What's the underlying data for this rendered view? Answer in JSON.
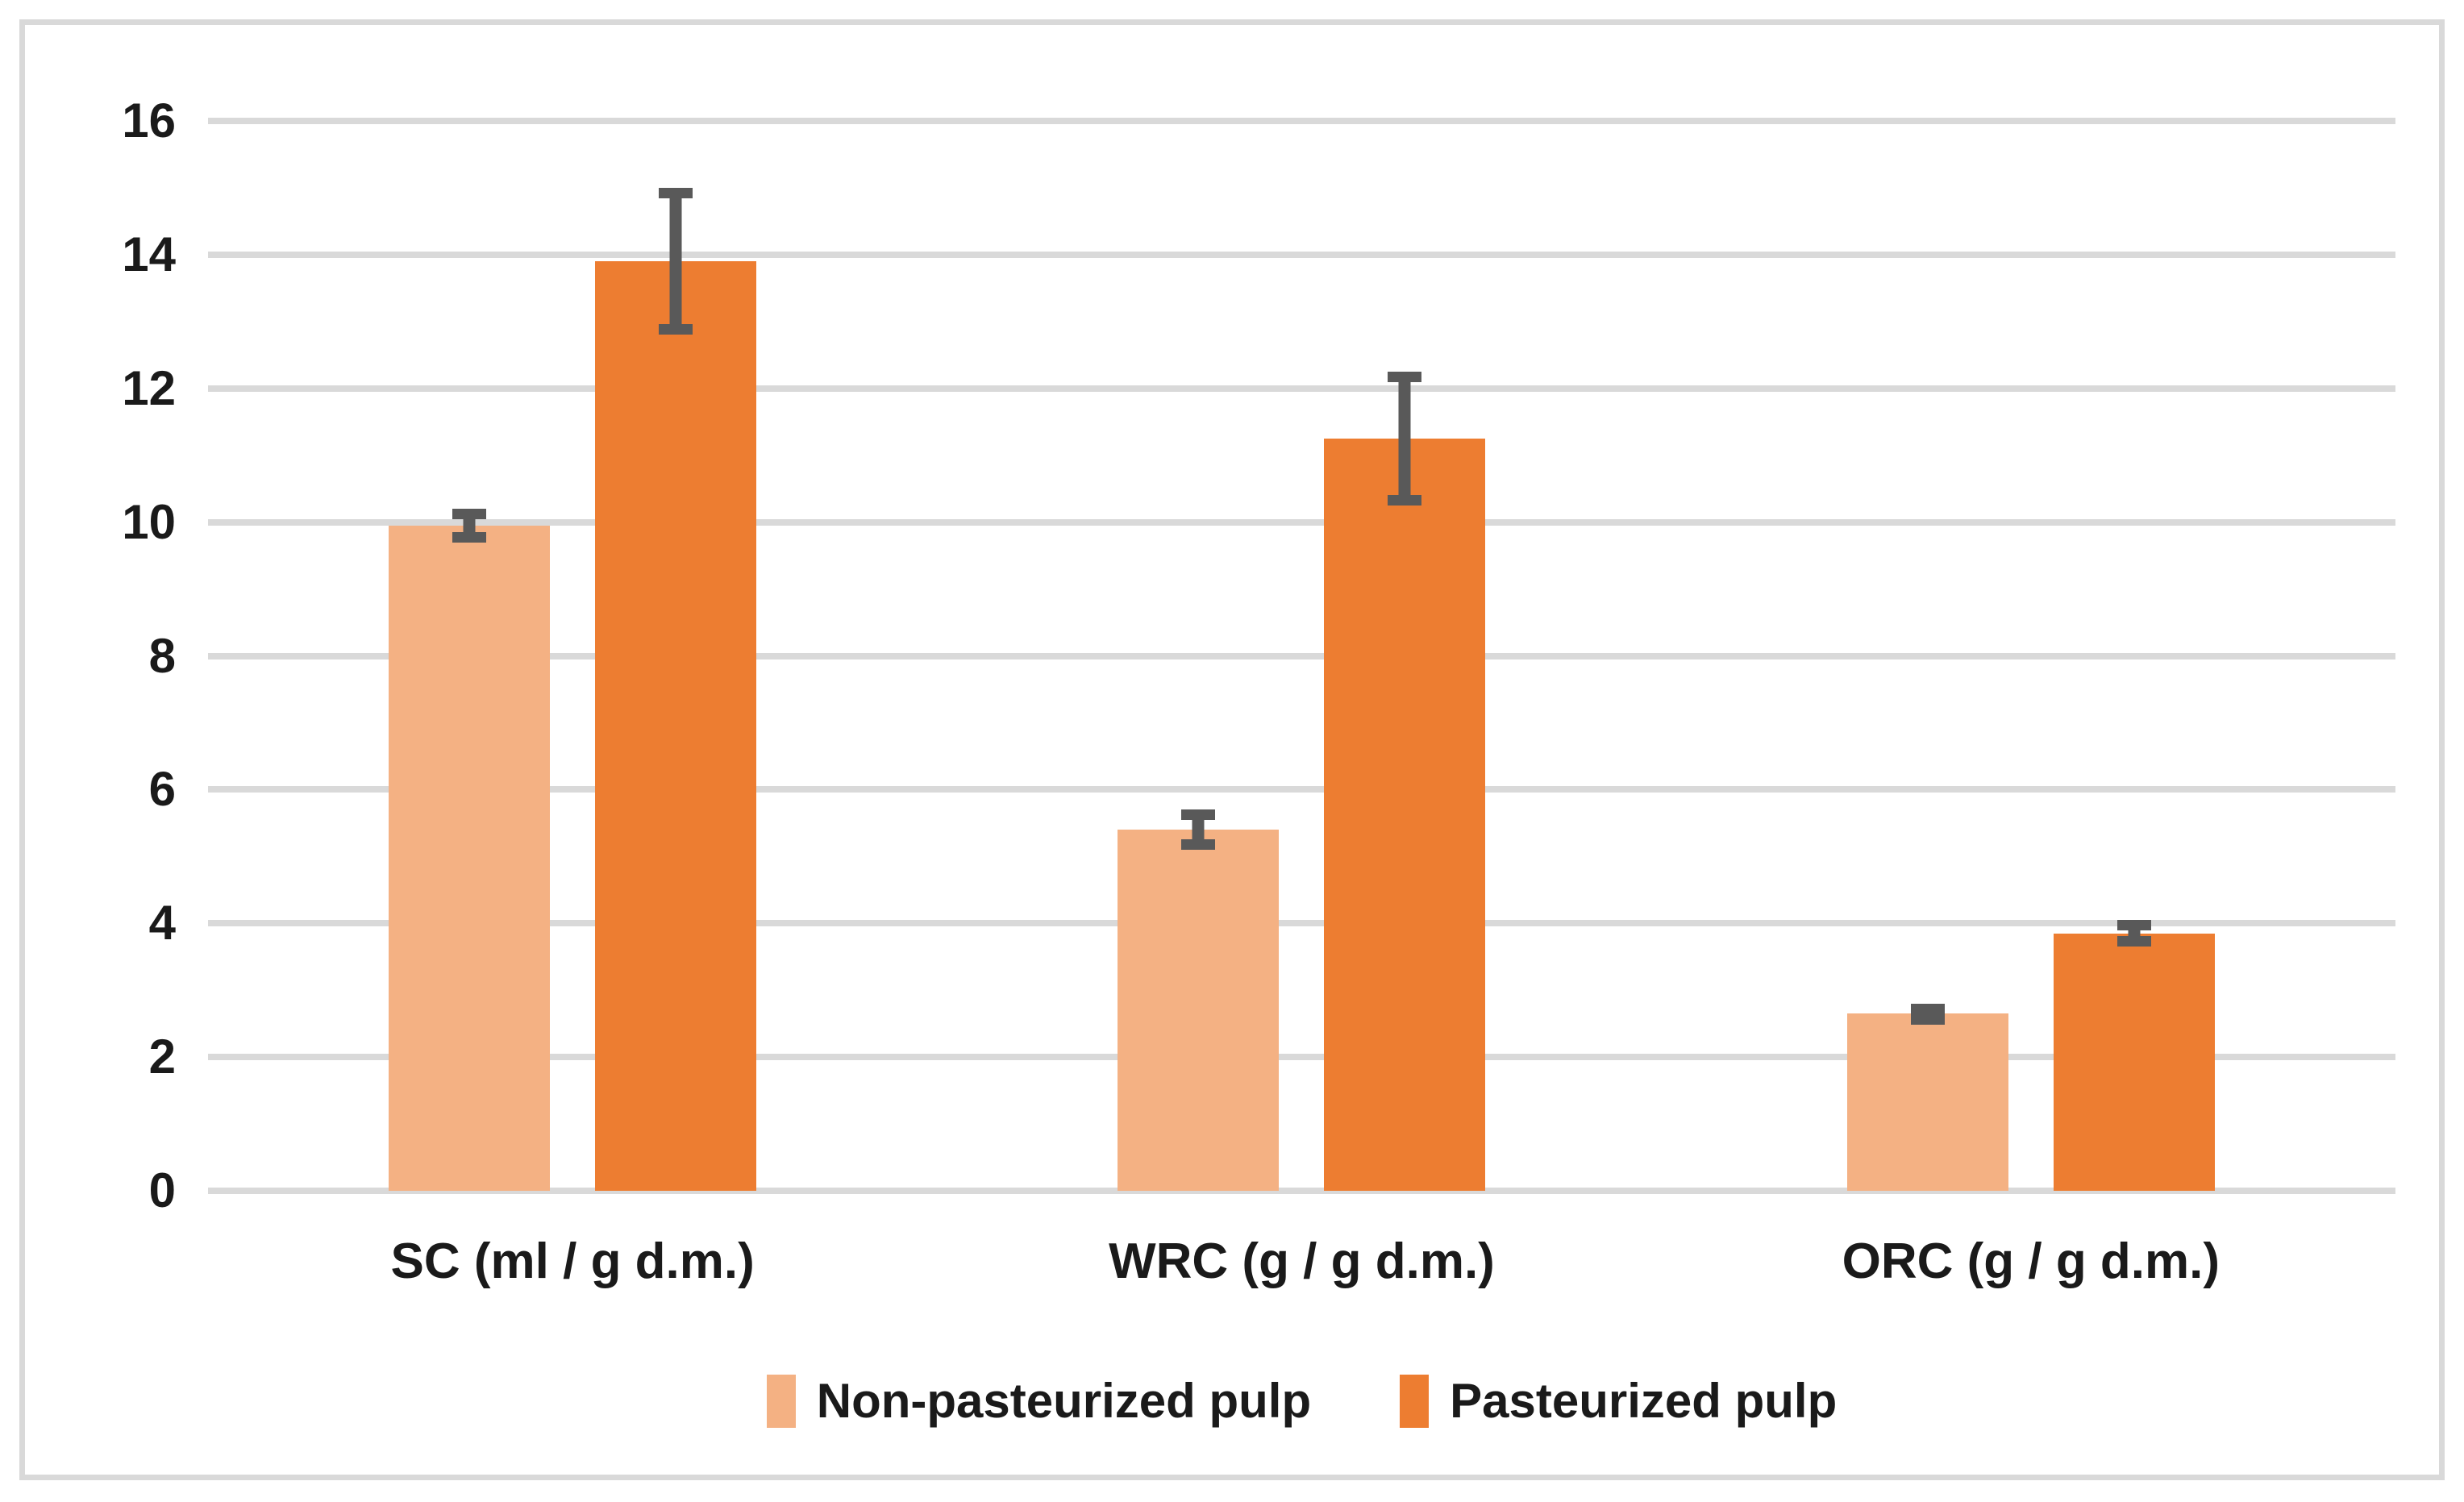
{
  "chart_data": {
    "type": "bar",
    "title": "",
    "categories": [
      "SC (ml / g d.m.)",
      "WRC (g / g d.m.)",
      "ORC (g / g d.m.)"
    ],
    "series": [
      {
        "name": "Non-pasteurized pulp",
        "color": "#F4B183",
        "values": [
          9.95,
          5.4,
          2.65
        ],
        "errors": [
          0.25,
          0.3,
          0.15
        ]
      },
      {
        "name": "Pasteurized pulp",
        "color": "#ED7D31",
        "values": [
          13.9,
          11.25,
          3.85
        ],
        "errors": [
          1.1,
          1.0,
          0.2
        ]
      }
    ],
    "xlabel": "",
    "ylabel": "",
    "ylim": [
      0,
      16
    ],
    "yticks": [
      0,
      2,
      4,
      6,
      8,
      10,
      12,
      14,
      16
    ],
    "grid": true,
    "legend_position": "bottom",
    "gridline_color": "#D9D9D9",
    "error_bar_color": "#595959",
    "frame_color": "#D9D9D9",
    "background_color": "#FFFFFF",
    "tick_label_color": "#1A1A1A"
  }
}
